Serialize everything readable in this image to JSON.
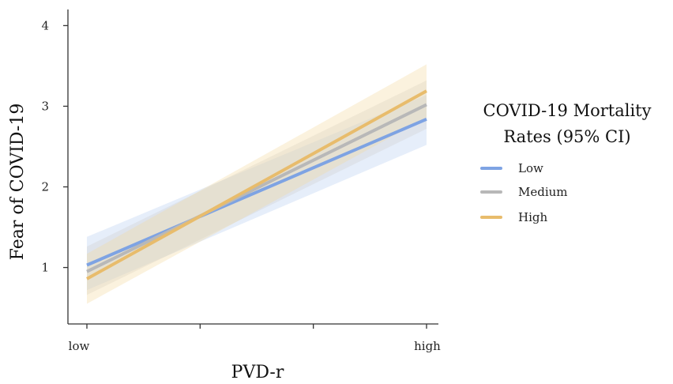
{
  "chart_data": {
    "type": "line",
    "xlabel": "PVD-r",
    "ylabel": "Fear of COVID-19",
    "x_tick_labels": [
      "low",
      "high"
    ],
    "x_range": [
      0,
      1
    ],
    "ylim": [
      0.3,
      4.2
    ],
    "y_ticks": [
      1,
      2,
      3,
      4
    ],
    "grid": false,
    "legend": {
      "title_lines": [
        "COVID-19 Mortality",
        "Rates (95% CI)"
      ],
      "placement": "right"
    },
    "series": [
      {
        "name": "Low",
        "color": "#7ea3e3",
        "ci_color": "#b7cdf1",
        "x": [
          0,
          1
        ],
        "y": [
          1.03,
          2.84
        ],
        "ci_lower": [
          0.72,
          2.52
        ],
        "ci_upper": [
          1.38,
          3.14
        ]
      },
      {
        "name": "Medium",
        "color": "#b8b8b8",
        "ci_color": "#cfcfcf",
        "x": [
          0,
          1
        ],
        "y": [
          0.95,
          3.02
        ],
        "ci_lower": [
          0.66,
          2.72
        ],
        "ci_upper": [
          1.26,
          3.32
        ]
      },
      {
        "name": "High",
        "color": "#e8bc6c",
        "ci_color": "#f4d9a0",
        "x": [
          0,
          1
        ],
        "y": [
          0.86,
          3.19
        ],
        "ci_lower": [
          0.55,
          2.86
        ],
        "ci_upper": [
          1.17,
          3.52
        ]
      }
    ]
  }
}
